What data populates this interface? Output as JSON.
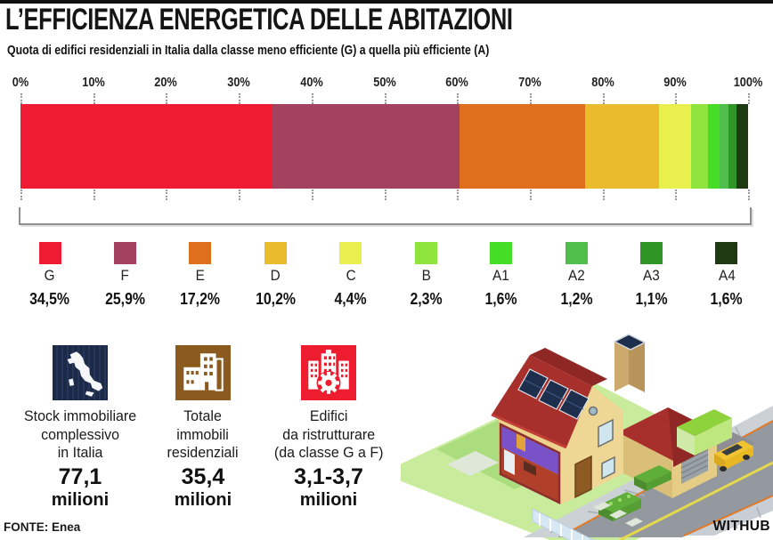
{
  "title": "L’EFFICIENZA ENERGETICA DELLE ABITAZIONI",
  "subtitle": "Quota di edifici residenziali in Italia dalla classe meno efficiente (G) a quella più efficiente (A)",
  "chart_data": {
    "type": "bar",
    "stacked": true,
    "orientation": "horizontal",
    "title": "Quota di edifici residenziali in Italia per classe energetica",
    "categories": [
      "G",
      "F",
      "E",
      "D",
      "C",
      "B",
      "A1",
      "A2",
      "A3",
      "A4"
    ],
    "values": [
      34.5,
      25.9,
      17.2,
      10.2,
      4.4,
      2.3,
      1.6,
      1.2,
      1.1,
      1.6
    ],
    "value_labels": [
      "34,5%",
      "25,9%",
      "17,2%",
      "10,2%",
      "4,4%",
      "2,3%",
      "1,6%",
      "1,2%",
      "1,1%",
      "1,6%"
    ],
    "colors": [
      "#ee1b33",
      "#a2425f",
      "#df6e1d",
      "#eabc2d",
      "#e9ef4c",
      "#8fe53d",
      "#46dd26",
      "#4fbe4a",
      "#2f9626",
      "#1d3a11"
    ],
    "x_ticks": [
      "0%",
      "10%",
      "20%",
      "30%",
      "40%",
      "50%",
      "60%",
      "70%",
      "80%",
      "90%",
      "100%"
    ],
    "xlim": [
      0,
      100
    ],
    "grid": "dotted-ticks",
    "legend_position": "below"
  },
  "stats": [
    {
      "icon": "italy-map-icon",
      "icon_bg": "#1c2a48",
      "label": "Stock immobiliare\ncomplessivo\nin Italia",
      "value": "77,1",
      "unit": "milioni"
    },
    {
      "icon": "buildings-icon",
      "icon_bg": "#8a5a1e",
      "label": "Totale\nimmobili\nresidenziali",
      "value": "35,4",
      "unit": "milioni"
    },
    {
      "icon": "renovation-buildings-gear-icon",
      "icon_bg": "#ed1c2e",
      "label": "Edifici\nda ristrutturare\n(da classe G a F)",
      "value": "3,1-3,7",
      "unit": "milioni"
    }
  ],
  "footer": {
    "source": "FONTE: Enea",
    "brand": "WITHUB"
  }
}
